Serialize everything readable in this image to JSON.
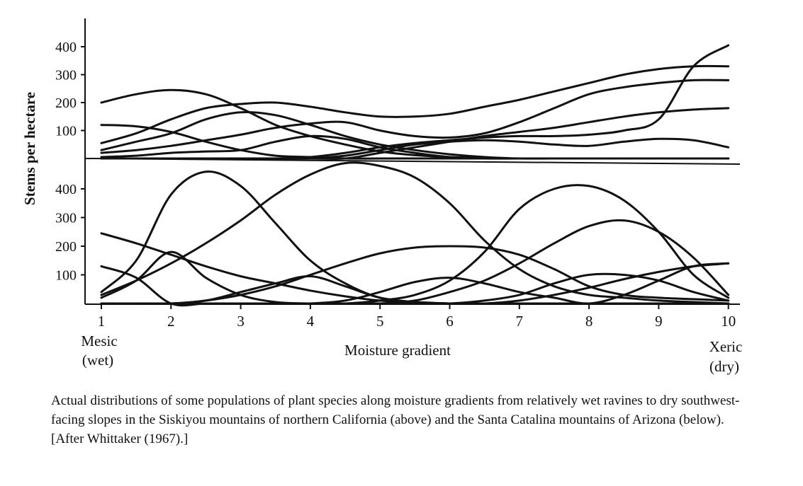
{
  "caption": "Actual distributions of some populations of plant species along moisture gradients from relatively wet ravines to dry southwest-facing slopes in the Siskiyou mountains of northern California (above) and the Santa Catalina mountains of Arizona (below). [After Whittaker (1967).]",
  "chart_data": [
    {
      "type": "line",
      "title": "",
      "ylabel": "Stems per hectare",
      "xlabel": "Moisture gradient",
      "x_end_labels": {
        "left": [
          "Mesic",
          "(wet)"
        ],
        "right": [
          "Xeric",
          "(dry)"
        ]
      },
      "x_ticks": [
        "1",
        "2",
        "3",
        "4",
        "5",
        "6",
        "7",
        "8",
        "9",
        "10"
      ],
      "y_ticks": [
        "100",
        "200",
        "300",
        "400"
      ],
      "xlim": [
        0.8,
        10.1
      ],
      "ylim": [
        0,
        400
      ],
      "grid": false,
      "x": [
        1,
        1.5,
        2,
        2.5,
        3,
        3.5,
        4,
        4.5,
        5,
        5.5,
        6,
        6.5,
        7,
        7.5,
        8,
        8.5,
        9,
        9.5,
        10
      ],
      "series": [
        {
          "values": [
            200,
            230,
            245,
            230,
            180,
            120,
            80,
            50,
            25,
            12,
            5,
            2,
            0,
            0,
            0,
            0,
            0,
            0,
            0
          ]
        },
        {
          "values": [
            55,
            90,
            140,
            180,
            195,
            200,
            185,
            165,
            150,
            150,
            160,
            185,
            210,
            240,
            270,
            300,
            320,
            330,
            330
          ]
        },
        {
          "values": [
            120,
            115,
            95,
            60,
            30,
            10,
            5,
            0,
            0,
            0,
            0,
            0,
            0,
            0,
            0,
            0,
            0,
            0,
            0
          ]
        },
        {
          "values": [
            30,
            60,
            90,
            140,
            165,
            155,
            120,
            80,
            50,
            30,
            15,
            5,
            0,
            0,
            0,
            0,
            0,
            0,
            0
          ]
        },
        {
          "values": [
            20,
            30,
            45,
            65,
            85,
            110,
            125,
            130,
            100,
            80,
            75,
            90,
            130,
            180,
            230,
            255,
            270,
            280,
            280
          ]
        },
        {
          "values": [
            5,
            10,
            20,
            25,
            30,
            60,
            80,
            70,
            40,
            20,
            5,
            0,
            0,
            0,
            0,
            0,
            0,
            0,
            0
          ]
        },
        {
          "values": [
            0,
            0,
            0,
            0,
            0,
            0,
            5,
            20,
            40,
            55,
            65,
            75,
            80,
            80,
            85,
            100,
            140,
            330,
            405
          ]
        },
        {
          "values": [
            0,
            0,
            0,
            0,
            0,
            0,
            0,
            10,
            30,
            50,
            60,
            65,
            60,
            50,
            45,
            60,
            70,
            65,
            40
          ]
        },
        {
          "values": [
            0,
            0,
            0,
            0,
            0,
            0,
            0,
            0,
            20,
            40,
            60,
            80,
            95,
            110,
            130,
            150,
            165,
            175,
            180
          ]
        }
      ]
    },
    {
      "type": "line",
      "title": "",
      "ylabel": "Stems per hectare",
      "xlabel": "Moisture gradient",
      "x_ticks": [
        "1",
        "2",
        "3",
        "4",
        "5",
        "6",
        "7",
        "8",
        "9",
        "10"
      ],
      "y_ticks": [
        "100",
        "200",
        "300",
        "400"
      ],
      "xlim": [
        0.8,
        10.1
      ],
      "ylim": [
        0,
        450
      ],
      "grid": false,
      "x": [
        1,
        1.5,
        2,
        2.5,
        3,
        3.5,
        4,
        4.5,
        5,
        5.5,
        6,
        6.5,
        7,
        7.5,
        8,
        8.5,
        9,
        9.5,
        10
      ],
      "series": [
        {
          "values": [
            40,
            150,
            380,
            460,
            410,
            280,
            150,
            70,
            20,
            5,
            0,
            0,
            0,
            0,
            0,
            0,
            0,
            0,
            0
          ]
        },
        {
          "values": [
            30,
            80,
            140,
            210,
            290,
            380,
            450,
            490,
            480,
            440,
            350,
            220,
            120,
            60,
            30,
            20,
            10,
            5,
            0
          ]
        },
        {
          "values": [
            245,
            210,
            170,
            130,
            95,
            70,
            45,
            25,
            10,
            5,
            0,
            0,
            0,
            0,
            0,
            0,
            0,
            0,
            0
          ]
        },
        {
          "values": [
            130,
            90,
            0,
            0,
            0,
            0,
            0,
            0,
            0,
            0,
            0,
            0,
            0,
            0,
            0,
            0,
            0,
            0,
            0
          ]
        },
        {
          "values": [
            20,
            80,
            180,
            90,
            30,
            5,
            0,
            0,
            0,
            0,
            0,
            0,
            0,
            0,
            0,
            0,
            0,
            0,
            0
          ]
        },
        {
          "values": [
            0,
            0,
            0,
            10,
            40,
            70,
            95,
            60,
            20,
            5,
            0,
            0,
            0,
            0,
            0,
            0,
            0,
            0,
            0
          ]
        },
        {
          "values": [
            0,
            0,
            0,
            10,
            30,
            60,
            100,
            140,
            175,
            195,
            200,
            195,
            170,
            120,
            60,
            30,
            20,
            15,
            10
          ]
        },
        {
          "values": [
            0,
            0,
            0,
            0,
            0,
            0,
            0,
            10,
            40,
            75,
            90,
            70,
            40,
            20,
            0,
            30,
            80,
            130,
            140
          ]
        },
        {
          "values": [
            0,
            0,
            0,
            0,
            0,
            0,
            0,
            0,
            10,
            30,
            80,
            180,
            330,
            400,
            410,
            360,
            250,
            100,
            20
          ]
        },
        {
          "values": [
            0,
            0,
            0,
            0,
            0,
            0,
            0,
            0,
            0,
            10,
            40,
            80,
            140,
            210,
            270,
            290,
            250,
            160,
            30
          ]
        },
        {
          "values": [
            0,
            0,
            0,
            0,
            0,
            0,
            0,
            0,
            0,
            0,
            0,
            10,
            30,
            70,
            100,
            100,
            80,
            40,
            10
          ]
        },
        {
          "values": [
            0,
            0,
            0,
            0,
            0,
            0,
            0,
            0,
            0,
            0,
            0,
            0,
            10,
            30,
            55,
            85,
            110,
            130,
            140
          ]
        }
      ]
    }
  ]
}
